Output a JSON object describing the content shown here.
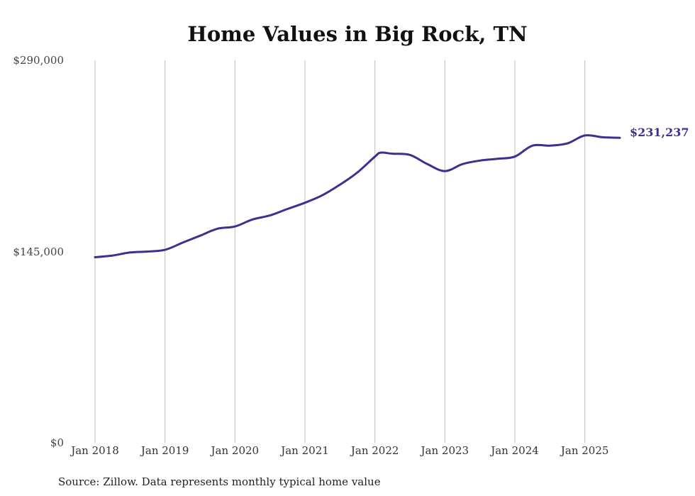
{
  "chart_data": {
    "type": "line",
    "title": "Home Values in Big Rock, TN",
    "source": "Source: Zillow. Data represents monthly typical home value",
    "x_tick_labels": [
      "Jan 2018",
      "Jan 2019",
      "Jan 2020",
      "Jan 2021",
      "Jan 2022",
      "Jan 2023",
      "Jan 2024",
      "Jan 2025"
    ],
    "y_tick_labels": [
      "$290,000",
      "$145,000",
      "$0"
    ],
    "ylim": [
      0,
      290000
    ],
    "xlim": [
      "2018-01",
      "2025-07"
    ],
    "grid": "vertical",
    "line_color": "#3b3190",
    "end_label": "$231,237",
    "series": [
      {
        "points": [
          [
            "2018-01",
            140700
          ],
          [
            "2018-04",
            142000
          ],
          [
            "2018-07",
            144300
          ],
          [
            "2018-10",
            145000
          ],
          [
            "2019-01",
            146300
          ],
          [
            "2019-04",
            151700
          ],
          [
            "2019-07",
            157000
          ],
          [
            "2019-10",
            162300
          ],
          [
            "2020-01",
            164000
          ],
          [
            "2020-04",
            169300
          ],
          [
            "2020-07",
            172400
          ],
          [
            "2020-10",
            177300
          ],
          [
            "2021-01",
            182000
          ],
          [
            "2021-04",
            187700
          ],
          [
            "2021-07",
            195700
          ],
          [
            "2021-10",
            205000
          ],
          [
            "2022-01",
            217000
          ],
          [
            "2022-02",
            220000
          ],
          [
            "2022-04",
            219200
          ],
          [
            "2022-07",
            218300
          ],
          [
            "2022-10",
            211300
          ],
          [
            "2023-01",
            206000
          ],
          [
            "2023-04",
            211300
          ],
          [
            "2023-07",
            214000
          ],
          [
            "2023-10",
            215300
          ],
          [
            "2024-01",
            217000
          ],
          [
            "2024-04",
            225300
          ],
          [
            "2024-07",
            225300
          ],
          [
            "2024-10",
            227000
          ],
          [
            "2025-01",
            233000
          ],
          [
            "2025-04",
            231700
          ],
          [
            "2025-07",
            231237
          ]
        ]
      }
    ]
  }
}
